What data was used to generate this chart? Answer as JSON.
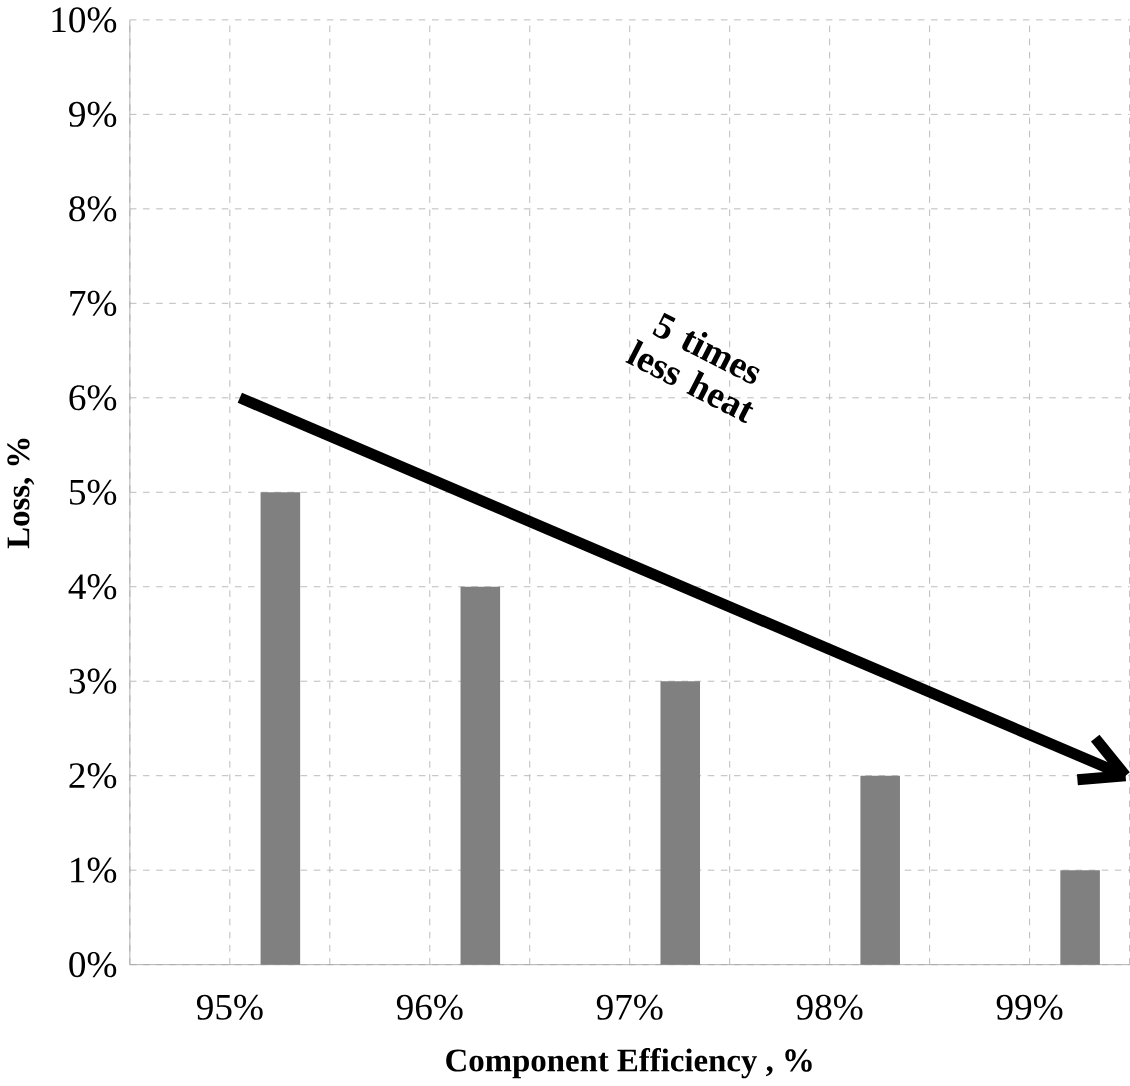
{
  "chart_data": {
    "type": "bar",
    "xlabel": "Component Efficiency , %",
    "ylabel": "Loss, %",
    "categories": [
      "95%",
      "96%",
      "97%",
      "98%",
      "99%"
    ],
    "values": [
      5,
      4,
      3,
      2,
      1
    ],
    "color": "#808080",
    "ylim": [
      0,
      10
    ],
    "yticks": [
      {
        "value": 0,
        "label": "0%"
      },
      {
        "value": 1,
        "label": "1%"
      },
      {
        "value": 2,
        "label": "2%"
      },
      {
        "value": 3,
        "label": "3%"
      },
      {
        "value": 4,
        "label": "4%"
      },
      {
        "value": 5,
        "label": "5%"
      },
      {
        "value": 6,
        "label": "6%"
      },
      {
        "value": 7,
        "label": "7%"
      },
      {
        "value": 8,
        "label": "8%"
      },
      {
        "value": 9,
        "label": "9%"
      },
      {
        "value": 10,
        "label": "10%"
      }
    ],
    "grid": true,
    "annotations": [
      "5 times less heat"
    ]
  }
}
